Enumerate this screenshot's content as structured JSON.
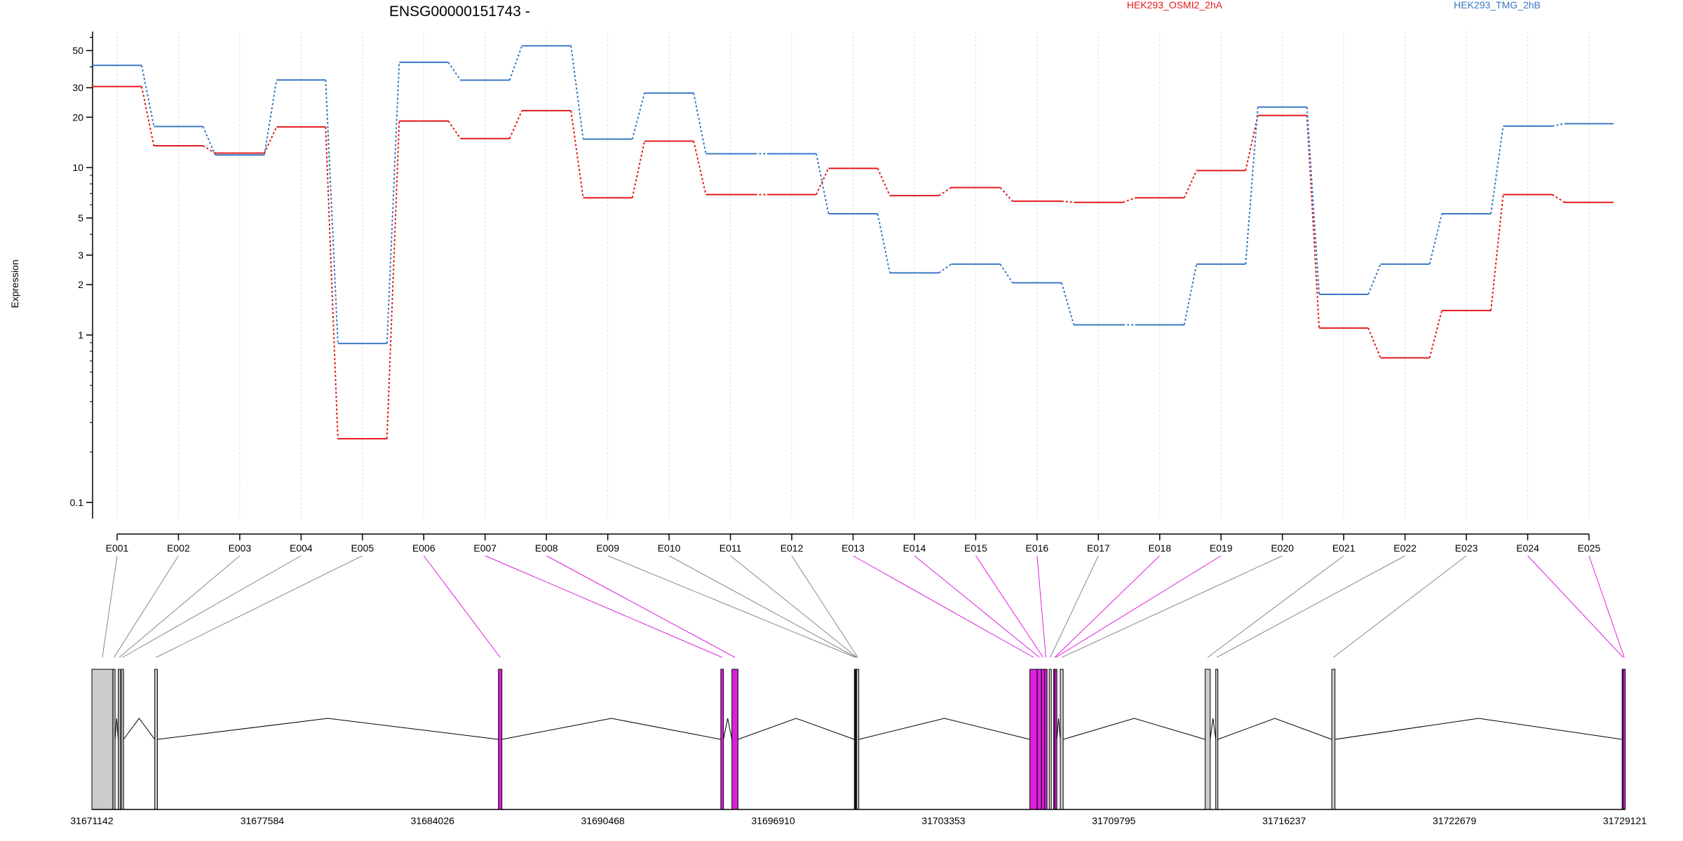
{
  "chart_data": {
    "type": "line",
    "title": "ENSG00000151743 -",
    "ylabel": "Expression",
    "yscale": "log",
    "ylim": [
      0.08,
      65
    ],
    "yticks": [
      0.1,
      1,
      2,
      3,
      5,
      10,
      20,
      30,
      50
    ],
    "grid": "vertical dashed per exon",
    "legend_placement": "top-right",
    "categories": [
      "E001",
      "E002",
      "E003",
      "E004",
      "E005",
      "E006",
      "E007",
      "E008",
      "E009",
      "E010",
      "E011",
      "E012",
      "E013",
      "E014",
      "E015",
      "E016",
      "E017",
      "E018",
      "E019",
      "E020",
      "E021",
      "E022",
      "E023",
      "E024",
      "E025"
    ],
    "series": [
      {
        "name": "HEK293_OSMI2_2hA",
        "color": "#e31a1c",
        "values": [
          30.5,
          13.5,
          12.2,
          17.5,
          0.24,
          19.0,
          14.9,
          21.9,
          6.6,
          14.4,
          6.9,
          6.9,
          9.9,
          6.8,
          7.6,
          6.3,
          6.2,
          6.6,
          9.6,
          20.5,
          1.1,
          0.73,
          1.4,
          6.9,
          6.2
        ]
      },
      {
        "name": "HEK293_TMG_2hB",
        "color": "#3a78c3",
        "values": [
          40.8,
          17.6,
          11.9,
          33.4,
          0.89,
          42.6,
          33.3,
          53.4,
          14.8,
          27.9,
          12.1,
          12.1,
          5.3,
          2.35,
          2.65,
          2.05,
          1.15,
          1.15,
          2.65,
          23.0,
          1.75,
          2.65,
          5.3,
          17.7,
          18.3
        ]
      }
    ],
    "gene_model": {
      "xlabels": [
        "31671142",
        "31677584",
        "31684026",
        "31690468",
        "31696910",
        "31703353",
        "31709795",
        "31716237",
        "31722679",
        "31729121"
      ],
      "xlim": [
        31671142,
        31729121
      ],
      "highlight_color": "#dd1fdd",
      "exon_color": "#cccccc",
      "exons": [
        {
          "id": "E001",
          "start": 31671142,
          "end": 31671935,
          "highlight": false
        },
        {
          "id": "E002",
          "start": 31671940,
          "end": 31672010,
          "highlight": false
        },
        {
          "id": "E003",
          "start": 31672140,
          "end": 31672205,
          "highlight": false
        },
        {
          "id": "E004",
          "start": 31672260,
          "end": 31672320,
          "highlight": false
        },
        {
          "id": "E005",
          "start": 31673520,
          "end": 31673620,
          "highlight": false
        },
        {
          "id": "E006",
          "start": 31686520,
          "end": 31686650,
          "highlight": true
        },
        {
          "id": "E007",
          "start": 31694930,
          "end": 31695030,
          "highlight": true
        },
        {
          "id": "E008",
          "start": 31695350,
          "end": 31695580,
          "highlight": true
        },
        {
          "id": "E009",
          "start": 31699980,
          "end": 31700010,
          "highlight": false
        },
        {
          "id": "E010",
          "start": 31700010,
          "end": 31700040,
          "highlight": false
        },
        {
          "id": "E011",
          "start": 31700040,
          "end": 31700070,
          "highlight": false
        },
        {
          "id": "E012",
          "start": 31700070,
          "end": 31700100,
          "highlight": false
        },
        {
          "id": "E013",
          "start": 31706620,
          "end": 31706900,
          "highlight": true
        },
        {
          "id": "E014",
          "start": 31706900,
          "end": 31707060,
          "highlight": true
        },
        {
          "id": "E015",
          "start": 31707060,
          "end": 31707180,
          "highlight": true
        },
        {
          "id": "E016",
          "start": 31707180,
          "end": 31707270,
          "highlight": true
        },
        {
          "id": "E017",
          "start": 31707350,
          "end": 31707380,
          "highlight": false
        },
        {
          "id": "E018",
          "start": 31707520,
          "end": 31707560,
          "highlight": true
        },
        {
          "id": "E019",
          "start": 31707560,
          "end": 31707600,
          "highlight": true
        },
        {
          "id": "E020",
          "start": 31707770,
          "end": 31707880,
          "highlight": false
        },
        {
          "id": "E021",
          "start": 31713250,
          "end": 31713440,
          "highlight": false
        },
        {
          "id": "E022",
          "start": 31713650,
          "end": 31713720,
          "highlight": false
        },
        {
          "id": "E023",
          "start": 31718040,
          "end": 31718160,
          "highlight": false
        },
        {
          "id": "E024",
          "start": 31729020,
          "end": 31729060,
          "highlight": true
        },
        {
          "id": "E025",
          "start": 31729060,
          "end": 31729121,
          "highlight": true
        }
      ]
    }
  }
}
